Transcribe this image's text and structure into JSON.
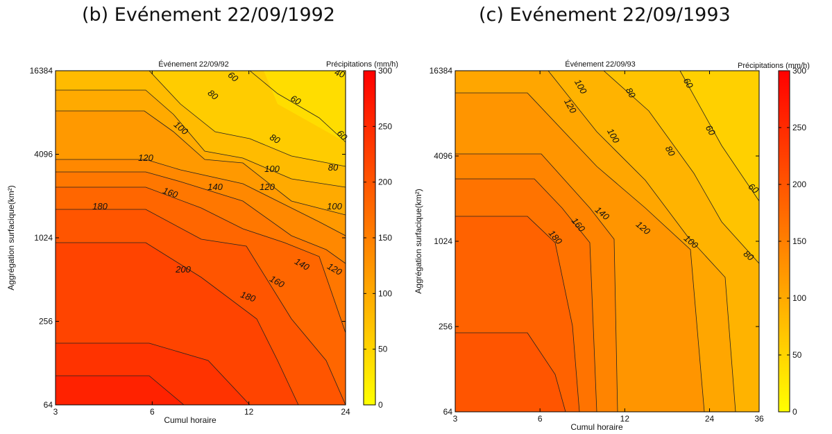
{
  "headings": {
    "b": "(b) Evénement 22/09/1992",
    "c": "(c) Evénement 22/09/1993"
  },
  "chart_data": [
    {
      "type": "heatmap",
      "title": "Événement 22/09/92",
      "xlabel": "Cumul horaire",
      "ylabel": "Aggrégation surfacique(km²)",
      "x_scale": "log2",
      "y_scale": "log2",
      "xlim": [
        3,
        24
      ],
      "ylim": [
        64,
        16384
      ],
      "x_ticks": [
        "3",
        "6",
        "12",
        "24"
      ],
      "y_ticks": [
        "64",
        "256",
        "1024",
        "4096",
        "16384"
      ],
      "colorbar": {
        "label": "Précipitations (mm/h)",
        "range": [
          0,
          300
        ],
        "ticks": [
          "0",
          "50",
          "100",
          "150",
          "200",
          "250",
          "300"
        ],
        "colors": [
          "#ffff00",
          "#ff0000"
        ]
      },
      "contour_levels": [
        40,
        60,
        80,
        100,
        120,
        140,
        160,
        180,
        200,
        220,
        240
      ],
      "contour_labels": [
        "40",
        "60",
        "60",
        "60",
        "80",
        "80",
        "80",
        "100",
        "100",
        "100",
        "120",
        "120",
        "120",
        "140",
        "140",
        "160",
        "160",
        "180",
        "180",
        "200"
      ]
    },
    {
      "type": "heatmap",
      "title": "Événement 22/09/93",
      "xlabel": "Cumul horaire",
      "ylabel": "Aggrégation surfacique(km²)",
      "x_scale": "log2",
      "y_scale": "log2",
      "xlim": [
        3,
        36
      ],
      "ylim": [
        64,
        16384
      ],
      "x_ticks": [
        "3",
        "6",
        "12",
        "24",
        "36"
      ],
      "y_ticks": [
        "64",
        "256",
        "1024",
        "4096",
        "16384"
      ],
      "colorbar": {
        "label": "Précipitations (mm/h)",
        "range": [
          0,
          300
        ],
        "ticks": [
          "0",
          "50",
          "100",
          "150",
          "200",
          "250",
          "300"
        ],
        "colors": [
          "#ffff00",
          "#ff0000"
        ]
      },
      "contour_levels": [
        60,
        80,
        100,
        120,
        140,
        160,
        180
      ],
      "contour_labels": [
        "60",
        "60",
        "60",
        "80",
        "80",
        "80",
        "100",
        "100",
        "100",
        "120",
        "120",
        "140",
        "160",
        "180"
      ]
    }
  ]
}
